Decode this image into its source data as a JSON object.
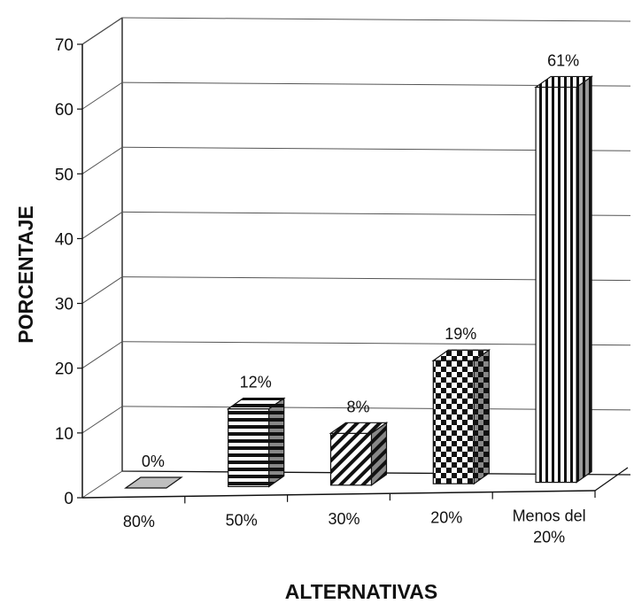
{
  "chart_data": {
    "type": "bar",
    "view": "3d",
    "categories": [
      "80%",
      "50%",
      "30%",
      "20%",
      "Menos del 20%"
    ],
    "category_lines": [
      [
        "80%"
      ],
      [
        "50%"
      ],
      [
        "30%"
      ],
      [
        "20%"
      ],
      [
        "Menos del",
        "20%"
      ]
    ],
    "values": [
      0,
      12,
      8,
      19,
      61
    ],
    "data_labels": [
      "0%",
      "12%",
      "8%",
      "19%",
      "61%"
    ],
    "patterns": [
      "solid-gray",
      "horizontal-stripes",
      "diagonal-stripes",
      "checkerboard",
      "vertical-stripes"
    ],
    "title": "",
    "xlabel": "ALTERNATIVAS",
    "ylabel": "PORCENTAJE",
    "ylim": [
      0,
      70
    ],
    "yticks": [
      0,
      10,
      20,
      30,
      40,
      50,
      60,
      70
    ],
    "grid": true,
    "legend": "none",
    "colors": {
      "ink": "#111111",
      "grid": "#555555",
      "gray_fill": "#bfbfbf",
      "background": "#ffffff"
    }
  }
}
